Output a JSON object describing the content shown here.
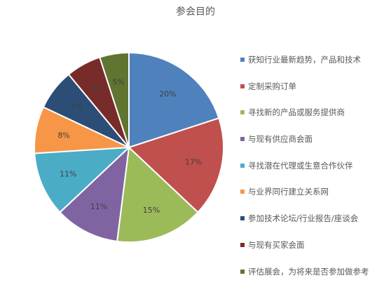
{
  "chart_data": {
    "type": "pie",
    "title": "参会目的",
    "categories": [
      "获知行业最新趋势，产品和技术",
      "定制采购订单",
      "寻找新的产品或服务提供商",
      "与现有供应商会面",
      "寻找潜在代理或生意合作伙伴",
      "与业界同行建立关系网",
      "参加技术论坛/行业报告/座谈会",
      "与现有买家会面",
      "评估展会，为将来是否参加做参考"
    ],
    "values": [
      20,
      17,
      15,
      11,
      11,
      8,
      7,
      6,
      5
    ],
    "data_labels": [
      "20%",
      "17%",
      "15%",
      "11%",
      "11%",
      "8%",
      "7%",
      "6%",
      "5%"
    ],
    "colors": [
      "#4F81BD",
      "#C0504D",
      "#9BBB59",
      "#8064A2",
      "#4BACC6",
      "#F79646",
      "#2C4D75",
      "#772C2A",
      "#5F7530"
    ],
    "start": "12 o'clock",
    "direction": "clockwise",
    "legend_position": "right"
  }
}
